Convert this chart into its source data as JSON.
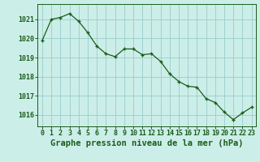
{
  "x": [
    0,
    1,
    2,
    3,
    4,
    5,
    6,
    7,
    8,
    9,
    10,
    11,
    12,
    13,
    14,
    15,
    16,
    17,
    18,
    19,
    20,
    21,
    22,
    23
  ],
  "y": [
    1019.9,
    1021.0,
    1021.1,
    1021.3,
    1020.9,
    1020.3,
    1019.6,
    1019.2,
    1019.05,
    1019.45,
    1019.45,
    1019.15,
    1019.2,
    1018.8,
    1018.15,
    1017.75,
    1017.5,
    1017.45,
    1016.85,
    1016.65,
    1016.15,
    1015.75,
    1016.1,
    1016.4
  ],
  "line_color": "#1a5c1a",
  "marker_color": "#1a5c1a",
  "bg_color": "#cceee8",
  "grid_color": "#99cccc",
  "axis_color": "#1a5c1a",
  "tick_label_color": "#1a5c1a",
  "xlabel": "Graphe pression niveau de la mer (hPa)",
  "ylim": [
    1015.4,
    1021.8
  ],
  "yticks": [
    1016,
    1017,
    1018,
    1019,
    1020,
    1021
  ],
  "xticks": [
    0,
    1,
    2,
    3,
    4,
    5,
    6,
    7,
    8,
    9,
    10,
    11,
    12,
    13,
    14,
    15,
    16,
    17,
    18,
    19,
    20,
    21,
    22,
    23
  ],
  "xlabel_fontsize": 7.5,
  "tick_fontsize": 6.0
}
